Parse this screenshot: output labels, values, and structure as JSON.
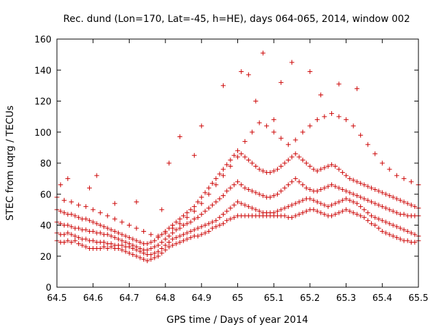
{
  "chart_data": {
    "type": "scatter",
    "title": "Rec. dund (Lon=170, Lat=-45, h=HE), days 064-065, 2014, window 002",
    "xlabel": "GPS time / Days of year 2014",
    "ylabel": "STEC from uqrg / TECUs",
    "xlim": [
      64.5,
      65.5
    ],
    "ylim": [
      0,
      160
    ],
    "xticks": [
      "64.5",
      "64.6",
      "64.7",
      "64.8",
      "64.9",
      "65",
      "65.1",
      "65.2",
      "65.3",
      "65.4",
      "65.5"
    ],
    "yticks": [
      "0",
      "20",
      "40",
      "60",
      "80",
      "100",
      "120",
      "140",
      "160"
    ],
    "marker": "+",
    "color": "#cc0000",
    "grid": false,
    "series": [
      {
        "x": [
          64.5,
          64.51,
          64.52,
          64.53,
          64.54,
          64.55,
          64.56,
          64.57,
          64.58,
          64.59,
          64.6,
          64.61,
          64.62,
          64.63,
          64.64,
          64.65,
          64.66,
          64.67,
          64.68,
          64.69,
          64.7,
          64.71,
          64.72,
          64.73,
          64.74,
          64.75,
          64.76,
          64.77,
          64.78,
          64.79,
          64.8,
          64.81,
          64.82,
          64.83,
          64.84,
          64.85,
          64.86,
          64.87,
          64.88,
          64.89,
          64.9,
          64.91,
          64.92,
          64.93,
          64.94,
          64.95,
          64.96,
          64.97,
          64.98,
          64.99,
          65.0,
          65.01,
          65.02,
          65.03,
          65.04,
          65.05,
          65.06,
          65.07,
          65.08,
          65.09,
          65.1,
          65.11,
          65.12,
          65.13,
          65.14,
          65.15,
          65.16,
          65.17,
          65.18,
          65.19,
          65.2,
          65.21,
          65.22,
          65.23,
          65.24,
          65.25,
          65.26,
          65.27,
          65.28,
          65.29,
          65.3,
          65.31,
          65.32,
          65.33,
          65.34,
          65.35,
          65.36,
          65.37,
          65.38,
          65.39,
          65.4,
          65.41,
          65.42,
          65.43,
          65.44,
          65.45,
          65.46,
          65.47,
          65.48,
          65.49,
          65.5
        ],
        "y": [
          30,
          29,
          29,
          30,
          29,
          30,
          28,
          27,
          26,
          25,
          25,
          25,
          25,
          26,
          25,
          26,
          25,
          25,
          24,
          23,
          22,
          21,
          20,
          19,
          18,
          17,
          18,
          19,
          20,
          22,
          24,
          26,
          27,
          28,
          29,
          30,
          31,
          32,
          33,
          33,
          34,
          35,
          36,
          38,
          39,
          40,
          41,
          43,
          44,
          45,
          46,
          46,
          46,
          46,
          46,
          46,
          46,
          46,
          46,
          46,
          46,
          46,
          46,
          46,
          45,
          45,
          46,
          47,
          48,
          49,
          50,
          50,
          49,
          48,
          47,
          46,
          46,
          47,
          48,
          49,
          50,
          49,
          48,
          47,
          46,
          45,
          43,
          41,
          40,
          38,
          36,
          35,
          34,
          33,
          32,
          31,
          30,
          30,
          29,
          29,
          30
        ]
      },
      {
        "x": [
          64.5,
          64.51,
          64.52,
          64.53,
          64.54,
          64.55,
          64.56,
          64.57,
          64.58,
          64.59,
          64.6,
          64.61,
          64.62,
          64.63,
          64.64,
          64.65,
          64.66,
          64.67,
          64.68,
          64.69,
          64.7,
          64.71,
          64.72,
          64.73,
          64.74,
          64.75,
          64.76,
          64.77,
          64.78,
          64.79,
          64.8,
          64.81,
          64.82,
          64.83,
          64.84,
          64.85,
          64.86,
          64.87,
          64.88,
          64.89,
          64.9,
          64.91,
          64.92,
          64.93,
          64.94,
          64.95,
          64.96,
          64.97,
          64.98,
          64.99,
          65.0,
          65.01,
          65.02,
          65.03,
          65.04,
          65.05,
          65.06,
          65.07,
          65.08,
          65.09,
          65.1,
          65.11,
          65.12,
          65.13,
          65.14,
          65.15,
          65.16,
          65.17,
          65.18,
          65.19,
          65.2,
          65.21,
          65.22,
          65.23,
          65.24,
          65.25,
          65.26,
          65.27,
          65.28,
          65.29,
          65.3,
          65.31,
          65.32,
          65.33,
          65.34,
          65.35,
          65.36,
          65.37,
          65.38,
          65.39,
          65.4,
          65.41,
          65.42,
          65.43,
          65.44,
          65.45,
          65.46,
          65.47,
          65.48,
          65.49,
          65.5
        ],
        "y": [
          35,
          34,
          34,
          35,
          34,
          33,
          32,
          31,
          31,
          30,
          30,
          29,
          29,
          29,
          28,
          28,
          27,
          27,
          27,
          26,
          26,
          25,
          24,
          23,
          22,
          21,
          21,
          22,
          23,
          25,
          27,
          29,
          31,
          32,
          33,
          34,
          35,
          36,
          37,
          38,
          39,
          40,
          41,
          42,
          43,
          45,
          47,
          49,
          51,
          53,
          55,
          54,
          53,
          52,
          51,
          50,
          49,
          48,
          48,
          48,
          48,
          49,
          50,
          51,
          52,
          53,
          54,
          55,
          56,
          57,
          57,
          56,
          55,
          54,
          53,
          52,
          53,
          54,
          55,
          56,
          57,
          56,
          55,
          54,
          52,
          50,
          48,
          46,
          45,
          44,
          43,
          42,
          41,
          40,
          39,
          38,
          37,
          36,
          35,
          34,
          33
        ]
      },
      {
        "x": [
          64.5,
          64.51,
          64.52,
          64.53,
          64.54,
          64.55,
          64.56,
          64.57,
          64.58,
          64.59,
          64.6,
          64.61,
          64.62,
          64.63,
          64.64,
          64.65,
          64.66,
          64.67,
          64.68,
          64.69,
          64.7,
          64.71,
          64.72,
          64.73,
          64.74,
          64.75,
          64.76,
          64.77,
          64.78,
          64.79,
          64.8,
          64.81,
          64.82,
          64.83,
          64.84,
          64.85,
          64.86,
          64.87,
          64.88,
          64.89,
          64.9,
          64.91,
          64.92,
          64.93,
          64.94,
          64.95,
          64.96,
          64.97,
          64.98,
          64.99,
          65.0,
          65.01,
          65.02,
          65.03,
          65.04,
          65.05,
          65.06,
          65.07,
          65.08,
          65.09,
          65.1,
          65.11,
          65.12,
          65.13,
          65.14,
          65.15,
          65.16,
          65.17,
          65.18,
          65.19,
          65.2,
          65.21,
          65.22,
          65.23,
          65.24,
          65.25,
          65.26,
          65.27,
          65.28,
          65.29,
          65.3,
          65.31,
          65.32,
          65.33,
          65.34,
          65.35,
          65.36,
          65.37,
          65.38,
          65.39,
          65.4,
          65.41,
          65.42,
          65.43,
          65.44,
          65.45,
          65.46,
          65.47,
          65.48,
          65.49,
          65.5
        ],
        "y": [
          42,
          41,
          40,
          40,
          39,
          38,
          38,
          37,
          37,
          36,
          36,
          35,
          35,
          34,
          34,
          33,
          32,
          31,
          30,
          29,
          28,
          27,
          26,
          25,
          24,
          24,
          25,
          26,
          27,
          29,
          31,
          33,
          35,
          37,
          38,
          40,
          41,
          42,
          44,
          45,
          47,
          49,
          51,
          53,
          55,
          57,
          59,
          62,
          64,
          66,
          68,
          66,
          64,
          63,
          62,
          61,
          60,
          59,
          58,
          58,
          59,
          60,
          62,
          64,
          66,
          68,
          70,
          68,
          66,
          64,
          63,
          62,
          62,
          63,
          64,
          65,
          66,
          65,
          64,
          63,
          62,
          61,
          60,
          59,
          58,
          57,
          56,
          55,
          54,
          53,
          52,
          51,
          50,
          49,
          48,
          47,
          47,
          46,
          46,
          46,
          46
        ]
      },
      {
        "x": [
          64.5,
          64.51,
          64.52,
          64.53,
          64.54,
          64.55,
          64.56,
          64.57,
          64.58,
          64.59,
          64.6,
          64.61,
          64.62,
          64.63,
          64.64,
          64.65,
          64.66,
          64.67,
          64.68,
          64.69,
          64.7,
          64.71,
          64.72,
          64.73,
          64.74,
          64.75,
          64.76,
          64.77,
          64.78,
          64.79,
          64.8,
          64.81,
          64.82,
          64.83,
          64.84,
          64.85,
          64.86,
          64.87,
          64.88,
          64.89,
          64.9,
          64.91,
          64.92,
          64.93,
          64.94,
          64.95,
          64.96,
          64.97,
          64.98,
          64.99,
          65.0,
          65.01,
          65.02,
          65.03,
          65.04,
          65.05,
          65.06,
          65.07,
          65.08,
          65.09,
          65.1,
          65.11,
          65.12,
          65.13,
          65.14,
          65.15,
          65.16,
          65.17,
          65.18,
          65.19,
          65.2,
          65.21,
          65.22,
          65.23,
          65.24,
          65.25,
          65.26,
          65.27,
          65.28,
          65.29,
          65.3,
          65.31,
          65.32,
          65.33,
          65.34,
          65.35,
          65.36,
          65.37,
          65.38,
          65.39,
          65.4,
          65.41,
          65.42,
          65.43,
          65.44,
          65.45,
          65.46,
          65.47,
          65.48,
          65.49,
          65.5
        ],
        "y": [
          50,
          49,
          48,
          47,
          47,
          46,
          45,
          44,
          44,
          43,
          42,
          41,
          40,
          39,
          38,
          37,
          36,
          35,
          34,
          33,
          32,
          31,
          30,
          29,
          28,
          28,
          29,
          30,
          32,
          34,
          36,
          38,
          40,
          42,
          44,
          46,
          48,
          50,
          52,
          55,
          58,
          61,
          64,
          67,
          70,
          73,
          76,
          79,
          82,
          85,
          88,
          86,
          84,
          82,
          80,
          78,
          76,
          75,
          74,
          74,
          75,
          76,
          78,
          80,
          82,
          84,
          86,
          84,
          82,
          80,
          78,
          76,
          75,
          76,
          77,
          78,
          79,
          78,
          76,
          74,
          72,
          70,
          69,
          68,
          67,
          66,
          65,
          64,
          63,
          62,
          61,
          60,
          59,
          58,
          57,
          56,
          55,
          54,
          53,
          52,
          51
        ]
      },
      {
        "x": [
          64.5,
          64.52,
          64.54,
          64.56,
          64.58,
          64.6,
          64.62,
          64.64,
          64.66,
          64.68,
          64.7,
          64.72,
          64.74,
          64.76,
          64.78,
          64.8,
          64.82,
          64.84,
          64.86,
          64.88,
          64.9,
          64.92,
          64.94,
          64.96,
          64.98,
          65.0,
          65.02,
          65.04,
          65.06,
          65.08,
          65.1,
          65.12,
          65.14,
          65.16,
          65.18,
          65.2,
          65.22,
          65.24,
          65.26,
          65.28,
          65.3,
          65.32,
          65.34,
          65.36,
          65.38,
          65.4,
          65.42,
          65.44,
          65.46,
          65.48,
          65.5
        ],
        "y": [
          58,
          56,
          55,
          53,
          52,
          50,
          48,
          46,
          44,
          42,
          40,
          38,
          36,
          34,
          33,
          35,
          38,
          41,
          45,
          49,
          54,
          60,
          66,
          72,
          78,
          84,
          94,
          100,
          106,
          104,
          100,
          96,
          92,
          95,
          100,
          104,
          108,
          110,
          112,
          110,
          108,
          104,
          98,
          92,
          86,
          80,
          76,
          72,
          70,
          68,
          66
        ]
      },
      {
        "x": [
          64.51,
          64.53,
          64.59,
          64.61,
          64.66,
          64.72,
          64.79,
          64.81,
          64.84,
          64.88,
          64.9,
          64.96,
          65.01,
          65.03,
          65.05,
          65.07,
          65.1,
          65.12,
          65.15,
          65.2,
          65.23,
          65.28,
          65.33
        ],
        "y": [
          66,
          70,
          64,
          72,
          54,
          55,
          50,
          80,
          97,
          85,
          104,
          130,
          139,
          137,
          120,
          151,
          108,
          132,
          145,
          139,
          124,
          131,
          128
        ]
      }
    ]
  }
}
